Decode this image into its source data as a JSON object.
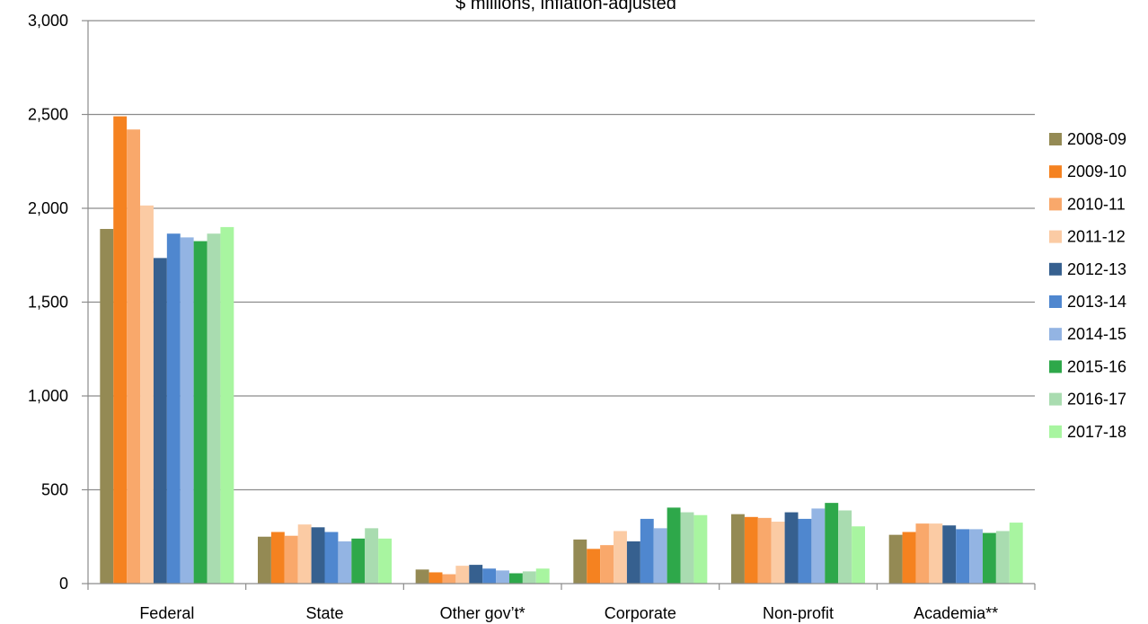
{
  "chart_data": {
    "type": "bar",
    "subtitle": "$ millions, inflation-adjusted",
    "categories": [
      "Federal",
      "State",
      "Other gov’t*",
      "Corporate",
      "Non-profit",
      "Academia**"
    ],
    "ylim": [
      0,
      3000
    ],
    "yticks": [
      0,
      500,
      1000,
      1500,
      2000,
      2500,
      3000
    ],
    "ytick_labels": [
      "0",
      "500",
      "1,000",
      "1,500",
      "2,000",
      "2,500",
      "3,000"
    ],
    "grid": true,
    "legend_position": "right",
    "series": [
      {
        "name": "2008-09",
        "color": "#948A54",
        "values": [
          1890,
          250,
          75,
          235,
          370,
          260
        ]
      },
      {
        "name": "2009-10",
        "color": "#F58220",
        "values": [
          2490,
          275,
          60,
          185,
          355,
          275
        ]
      },
      {
        "name": "2010-11",
        "color": "#F9A86B",
        "values": [
          2420,
          255,
          50,
          205,
          350,
          320
        ]
      },
      {
        "name": "2011-12",
        "color": "#FBCBA4",
        "values": [
          2015,
          315,
          95,
          280,
          330,
          320
        ]
      },
      {
        "name": "2012-13",
        "color": "#36608F",
        "values": [
          1735,
          300,
          100,
          225,
          380,
          310
        ]
      },
      {
        "name": "2013-14",
        "color": "#4F87CF",
        "values": [
          1865,
          275,
          80,
          345,
          345,
          290
        ]
      },
      {
        "name": "2014-15",
        "color": "#93B4E3",
        "values": [
          1845,
          225,
          70,
          295,
          400,
          290
        ]
      },
      {
        "name": "2015-16",
        "color": "#2EA84A",
        "values": [
          1825,
          240,
          55,
          405,
          430,
          270
        ]
      },
      {
        "name": "2016-17",
        "color": "#A9DCB0",
        "values": [
          1865,
          295,
          65,
          380,
          390,
          280
        ]
      },
      {
        "name": "2017-18",
        "color": "#A8F5A0",
        "values": [
          1900,
          240,
          80,
          365,
          305,
          325
        ]
      }
    ]
  }
}
